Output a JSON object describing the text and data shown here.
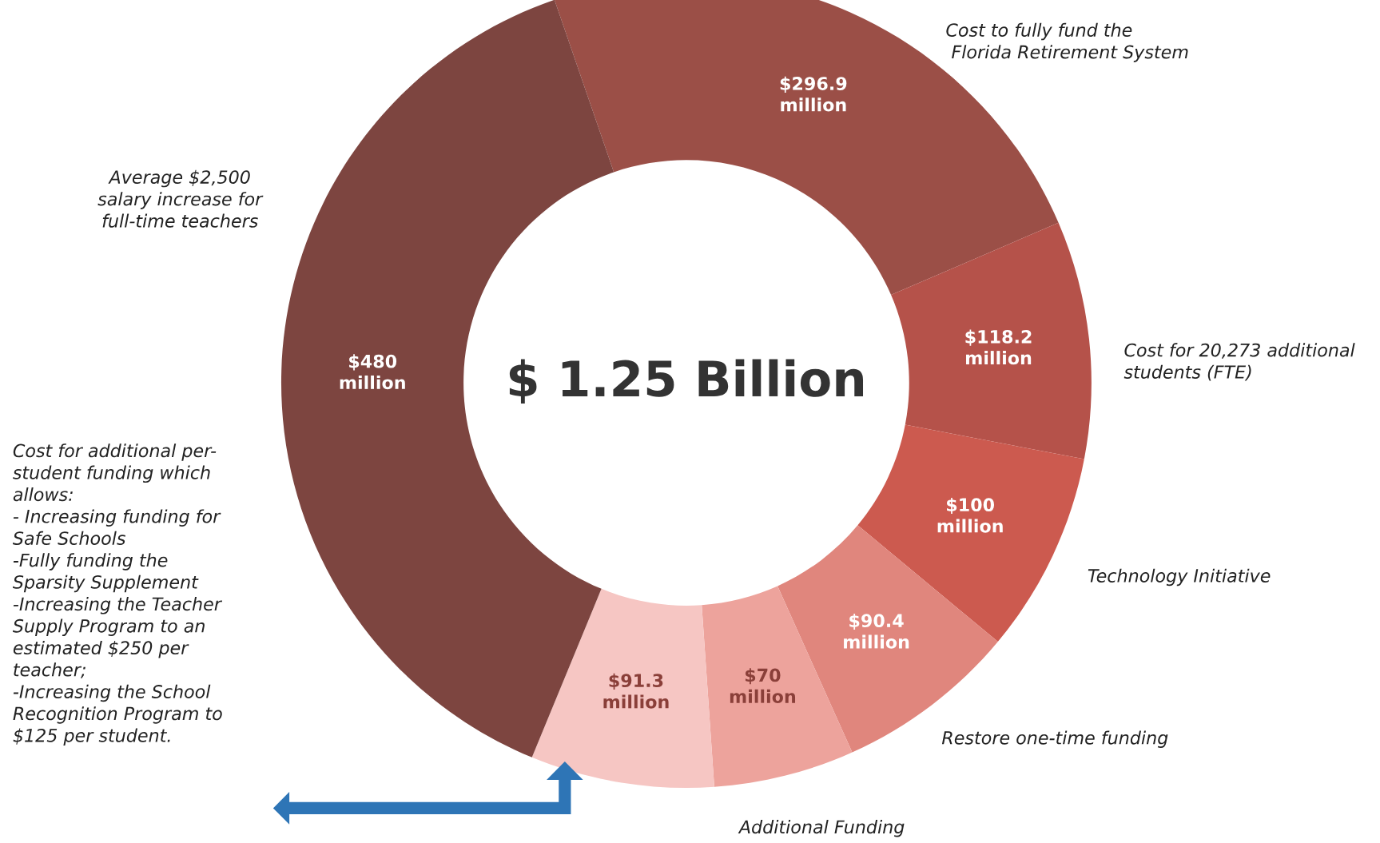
{
  "chart_data": {
    "type": "donut",
    "categories": [
      "Cost to fully fund the\n Florida Retirement System",
      "Cost for 20,273 additional\nstudents (FTE)",
      "Technology Initiative",
      "Restore one-time funding",
      "Additional Funding",
      "Cost for additional per-\nstudent funding which\nallows:\n- Increasing funding for\nSafe Schools\n-Fully funding the\nSparsity Supplement\n-Increasing the Teacher\nSupply Program to an\nestimated $250 per\nteacher;\n-Increasing the School\nRecognition Program to\n$125 per student.",
      "Average $2,500\nsalary increase for\nfull-time teachers"
    ],
    "values": [
      296900000,
      118200000,
      100000000,
      90400000,
      70000000,
      91300000,
      480000000
    ],
    "colors": [
      "#9b4f47",
      "#b5524a",
      "#cc5a4f",
      "#e0867d",
      "#eda39c",
      "#f6c6c3",
      "#7d4540"
    ],
    "value_labels": [
      "$296.9\nmillion",
      "$118.2\nmillion",
      "$100\nmillion",
      "$90.4\nmillion",
      "$70\nmillion",
      "$91.3\nmillion",
      "$480\nmillion"
    ],
    "annotations": [
      "$ 1.25 Billion"
    ]
  }
}
